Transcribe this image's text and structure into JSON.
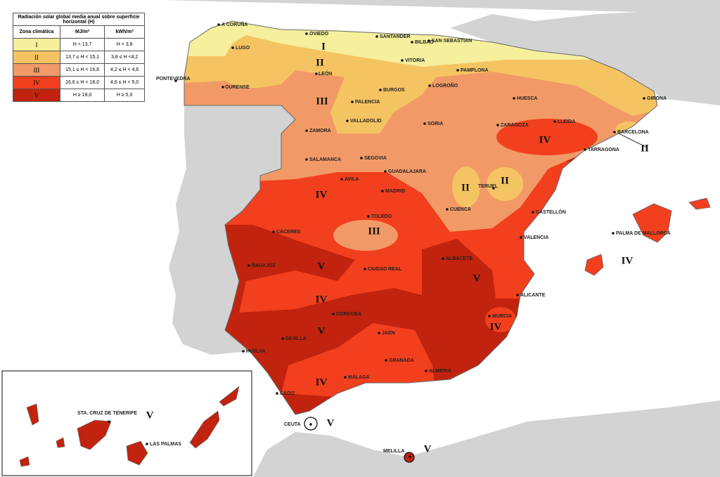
{
  "legend": {
    "title": "Radiación solar global media anual sobre superficie horizontal (H)",
    "headers": [
      "Zona climática",
      "MJ/m²",
      "kWh/m²"
    ],
    "zones": [
      {
        "label": "I",
        "mj": "H < 13,7",
        "kwh": "H < 3,8",
        "color": "#f6ef9c"
      },
      {
        "label": "II",
        "mj": "13,7 ≤ H < 15,1",
        "kwh": "3,8 ≤ H <4,2",
        "color": "#f5c462"
      },
      {
        "label": "III",
        "mj": "15,1 ≤ H < 16,6",
        "kwh": "4,2 ≤ H < 4,6",
        "color": "#f29a67"
      },
      {
        "label": "IV",
        "mj": "16,6 ≤ H < 18,0",
        "kwh": "4,6 ≤ H < 5,0",
        "color": "#f23f1e"
      },
      {
        "label": "V",
        "mj": "H ≥ 18,0",
        "kwh": "H ≥ 5,0",
        "color": "#c1230e"
      }
    ]
  },
  "cities": [
    "A CORUÑA",
    "OVIEDO",
    "SANTANDER",
    "BILBAO",
    "SAN SEBASTIAN",
    "LUGO",
    "VITORIA",
    "PAMPLONA",
    "PONTEVEDRA",
    "OURENSE",
    "LEÓN",
    "BURGOS",
    "LOGROÑO",
    "HUESCA",
    "GIRONA",
    "PALENCIA",
    "VALLADOLID",
    "SORIA",
    "ZARAGOZA",
    "LLEIDA",
    "BARCELONA",
    "ZAMORA",
    "TARRAGONA",
    "SALAMANCA",
    "SEGOVIA",
    "GUADALAJARA",
    "AVILA",
    "MADRID",
    "TERUEL",
    "CUENCA",
    "CASTELLÓN",
    "TOLEDO",
    "CÁCERES",
    "VALENCIA",
    "PALMA DE MALLORCA",
    "BADAJOZ",
    "CIUDAD REAL",
    "ALBACETE",
    "ALICANTE",
    "CÓRDOBA",
    "MURCIA",
    "JAÉN",
    "SEVILLA",
    "HUELVA",
    "GRANADA",
    "ALMERIA",
    "MÁLAGA",
    "CÁDIZ",
    "CEUTA",
    "MELILLA",
    "STA. CRUZ DE TENERIFE",
    "LAS PALMAS"
  ],
  "zone_labels": [
    "I",
    "II",
    "III",
    "II",
    "II",
    "IV",
    "II",
    "IV",
    "III",
    "V",
    "V",
    "IV",
    "IV",
    "V",
    "IV",
    "V",
    "V",
    "V",
    "IV"
  ]
}
